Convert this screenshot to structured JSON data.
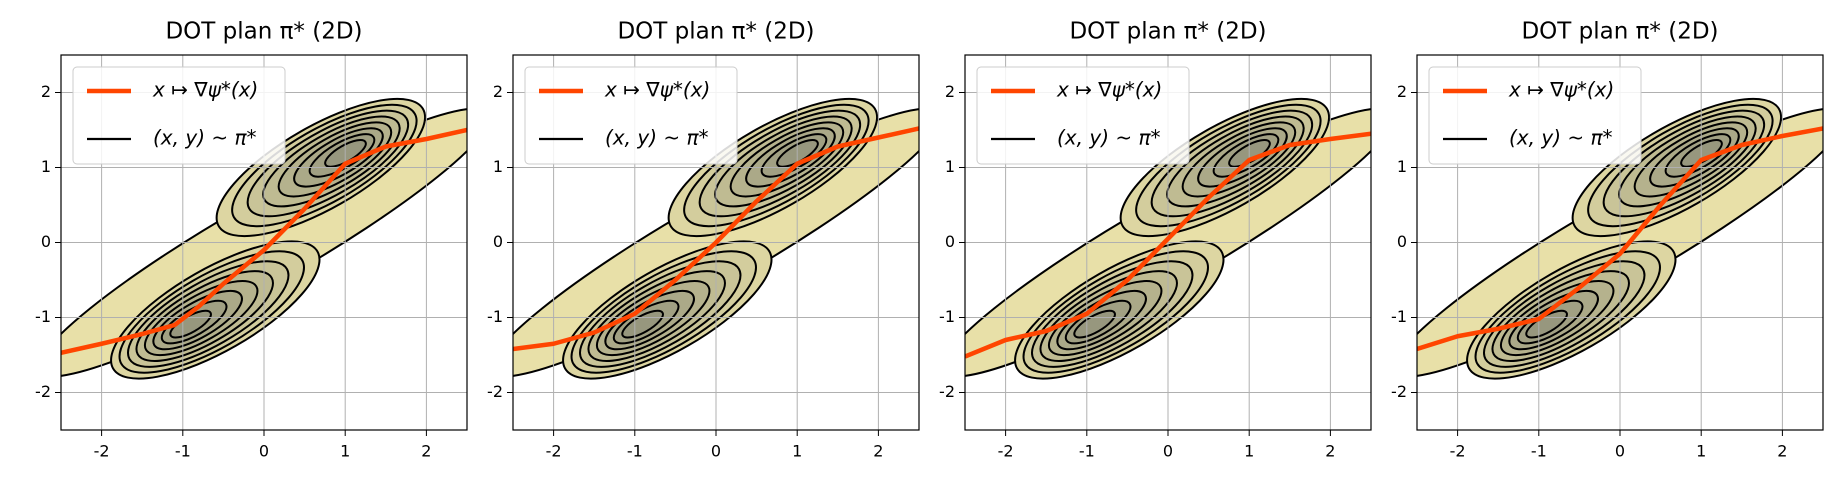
{
  "chart_data": [
    {
      "type": "line",
      "title": "DOT plan π* (2D)",
      "xlim": [
        -2.5,
        2.5
      ],
      "ylim": [
        -2.5,
        2.5
      ],
      "xticks": [
        -2,
        -1,
        0,
        1,
        2
      ],
      "yticks": [
        -2,
        -1,
        0,
        1,
        2
      ],
      "grid": true,
      "legend": "upper left",
      "series": [
        {
          "name": "x ↦ ∇ψ*(x)",
          "color": "#ff4500",
          "x": [
            -2.5,
            -2,
            -1.5,
            -1.1,
            -0.8,
            -0.5,
            0,
            0.5,
            1,
            1.5,
            2,
            2.5
          ],
          "values": [
            -1.47,
            -1.35,
            -1.22,
            -1.1,
            -0.85,
            -0.55,
            -0.1,
            0.45,
            1.05,
            1.28,
            1.38,
            1.5
          ]
        }
      ],
      "contours": {
        "name": "(x, y) ~ π*",
        "color": "#000000"
      }
    },
    {
      "type": "line",
      "title": "DOT plan π* (2D)",
      "xlim": [
        -2.5,
        2.5
      ],
      "ylim": [
        -2.5,
        2.5
      ],
      "xticks": [
        -2,
        -1,
        0,
        1,
        2
      ],
      "yticks": [
        -2,
        -1,
        0,
        1,
        2
      ],
      "grid": true,
      "legend": "upper left",
      "series": [
        {
          "name": "x ↦ ∇ψ*(x)",
          "color": "#ff4500",
          "x": [
            -2.5,
            -2,
            -1.5,
            -1,
            -0.5,
            0,
            0.5,
            1,
            1.5,
            2,
            2.5
          ],
          "values": [
            -1.42,
            -1.35,
            -1.2,
            -0.95,
            -0.5,
            0.0,
            0.55,
            1.05,
            1.28,
            1.4,
            1.52
          ]
        }
      ],
      "contours": {
        "name": "(x, y) ~ π*",
        "color": "#000000"
      }
    },
    {
      "type": "line",
      "title": "DOT plan π* (2D)",
      "xlim": [
        -2.5,
        2.5
      ],
      "ylim": [
        -2.5,
        2.5
      ],
      "xticks": [
        -2,
        -1,
        0,
        1,
        2
      ],
      "yticks": [
        -2,
        -1,
        0,
        1,
        2
      ],
      "grid": true,
      "legend": "upper left",
      "series": [
        {
          "name": "x ↦ ∇ψ*(x)",
          "color": "#ff4500",
          "x": [
            -2.5,
            -2,
            -1.5,
            -1,
            -0.5,
            0,
            0.5,
            1,
            1.5,
            2,
            2.5
          ],
          "values": [
            -1.52,
            -1.3,
            -1.18,
            -0.95,
            -0.5,
            0.05,
            0.6,
            1.1,
            1.3,
            1.38,
            1.45
          ]
        }
      ],
      "contours": {
        "name": "(x, y) ~ π*",
        "color": "#000000"
      }
    },
    {
      "type": "line",
      "title": "DOT plan π* (2D)",
      "xlim": [
        -2.5,
        2.5
      ],
      "ylim": [
        -2.5,
        2.5
      ],
      "xticks": [
        -2,
        -1,
        0,
        1,
        2
      ],
      "yticks": [
        -2,
        -1,
        0,
        1,
        2
      ],
      "grid": true,
      "legend": "upper left",
      "series": [
        {
          "name": "x ↦ ∇ψ*(x)",
          "color": "#ff4500",
          "x": [
            -2.5,
            -2,
            -1.5,
            -1,
            -0.5,
            0,
            0.5,
            1,
            1.5,
            2,
            2.5
          ],
          "values": [
            -1.42,
            -1.25,
            -1.15,
            -1.02,
            -0.6,
            -0.15,
            0.5,
            1.1,
            1.3,
            1.42,
            1.52
          ]
        }
      ],
      "contours": {
        "name": "(x, y) ~ π*",
        "color": "#000000"
      }
    }
  ]
}
